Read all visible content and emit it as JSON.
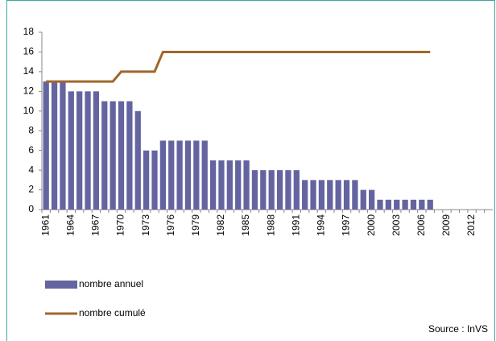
{
  "chart_data": {
    "type": "bar",
    "categories": [
      "1961",
      null,
      null,
      "1964",
      null,
      null,
      "1967",
      null,
      null,
      "1970",
      null,
      null,
      "1973",
      null,
      null,
      "1976",
      null,
      null,
      "1979",
      null,
      null,
      "1982",
      null,
      null,
      "1985",
      null,
      null,
      "1988",
      null,
      null,
      "1991",
      null,
      null,
      "1994",
      null,
      null,
      "1997",
      null,
      null,
      "2000",
      null,
      null,
      "2003",
      null,
      null,
      "2006",
      null,
      null,
      "2009",
      null,
      null,
      "2012",
      null,
      null
    ],
    "series": [
      {
        "name": "nombre annuel",
        "type": "bar",
        "color": "#6464a0",
        "values": [
          13,
          13,
          13,
          12,
          12,
          12,
          12,
          11,
          11,
          11,
          11,
          10,
          6,
          6,
          7,
          7,
          7,
          7,
          7,
          7,
          5,
          5,
          5,
          5,
          5,
          4,
          4,
          4,
          4,
          4,
          4,
          3,
          3,
          3,
          3,
          3,
          3,
          3,
          2,
          2,
          1,
          1,
          1,
          1,
          1,
          1,
          1,
          null,
          null,
          null,
          null,
          null,
          null,
          null
        ]
      },
      {
        "name": "nombre cumulé",
        "type": "line",
        "color": "#a0672a",
        "values": [
          13,
          13,
          13,
          13,
          13,
          13,
          13,
          13,
          13,
          14,
          14,
          14,
          14,
          14,
          16,
          16,
          16,
          16,
          16,
          16,
          16,
          16,
          16,
          16,
          16,
          16,
          16,
          16,
          16,
          16,
          16,
          16,
          16,
          16,
          16,
          16,
          16,
          16,
          16,
          16,
          16,
          16,
          16,
          16,
          16,
          16,
          16,
          null,
          null,
          null,
          null,
          null,
          null,
          null
        ]
      }
    ],
    "ylim": [
      0,
      18
    ],
    "yticks": [
      0,
      2,
      4,
      6,
      8,
      10,
      12,
      14,
      16,
      18
    ],
    "source": "Source : InVS"
  }
}
